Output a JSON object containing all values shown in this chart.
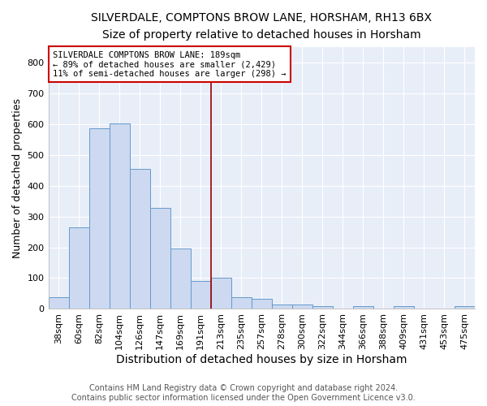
{
  "title": "SILVERDALE, COMPTONS BROW LANE, HORSHAM, RH13 6BX",
  "subtitle": "Size of property relative to detached houses in Horsham",
  "xlabel": "Distribution of detached houses by size in Horsham",
  "ylabel": "Number of detached properties",
  "categories": [
    "38sqm",
    "60sqm",
    "82sqm",
    "104sqm",
    "126sqm",
    "147sqm",
    "169sqm",
    "191sqm",
    "213sqm",
    "235sqm",
    "257sqm",
    "278sqm",
    "300sqm",
    "322sqm",
    "344sqm",
    "366sqm",
    "388sqm",
    "409sqm",
    "431sqm",
    "453sqm",
    "475sqm"
  ],
  "values": [
    38,
    265,
    585,
    602,
    454,
    328,
    197,
    90,
    100,
    38,
    32,
    15,
    15,
    10,
    0,
    8,
    0,
    8,
    0,
    0,
    8
  ],
  "bar_color": "#ccd9f0",
  "bar_edge_color": "#6699cc",
  "vline_x": 7.5,
  "vline_color": "#990000",
  "annotation_text": "SILVERDALE COMPTONS BROW LANE: 189sqm\n← 89% of detached houses are smaller (2,429)\n11% of semi-detached houses are larger (298) →",
  "annotation_box_color": "#ffffff",
  "annotation_box_edge": "#cc0000",
  "footer": "Contains HM Land Registry data © Crown copyright and database right 2024.\nContains public sector information licensed under the Open Government Licence v3.0.",
  "ylim": [
    0,
    850
  ],
  "yticks": [
    0,
    100,
    200,
    300,
    400,
    500,
    600,
    700,
    800
  ],
  "plot_bg_color": "#e8eef8",
  "fig_bg_color": "#ffffff",
  "grid_color": "#ffffff",
  "title_fontsize": 10,
  "subtitle_fontsize": 9,
  "xlabel_fontsize": 10,
  "ylabel_fontsize": 9,
  "tick_fontsize": 8,
  "annotation_fontsize": 7.5,
  "footer_fontsize": 7
}
